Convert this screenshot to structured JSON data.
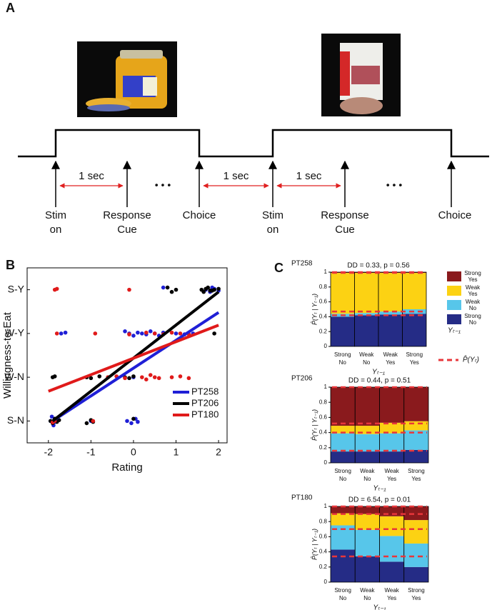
{
  "panel_labels": [
    "A",
    "B",
    "C"
  ],
  "diagram": {
    "events": [
      "Stim on",
      "Response Cue",
      "Choice",
      "Stim on",
      "Response Cue",
      "Choice"
    ],
    "intervals": [
      "1 sec",
      "1 sec",
      "1 sec"
    ],
    "ellipsis": [
      "• • •",
      "• • •"
    ]
  },
  "chart_data": [
    {
      "type": "scatter",
      "xlabel": "Rating",
      "ylabel": "Willingness-to-Eat",
      "xlim": [
        -2.5,
        2.2
      ],
      "xticks": [
        -2,
        -1,
        0,
        1,
        2
      ],
      "ylim": [
        0.5,
        4.5
      ],
      "yticks": [
        {
          "value": 1,
          "label": "S-N"
        },
        {
          "value": 2,
          "label": "W-N"
        },
        {
          "value": 3,
          "label": "W-Y"
        },
        {
          "value": 4,
          "label": "S-Y"
        }
      ],
      "series": [
        {
          "name": "PT258",
          "color": "#1f1fd6",
          "x": [
            -1.95,
            -1.9,
            -1.85,
            -1.8,
            -1.92,
            -1.88,
            -1.83,
            -1.7,
            -1.6,
            -1.0,
            -0.15,
            -0.05,
            0.05,
            0.1,
            -0.1,
            -0.2,
            0,
            0.1,
            0.2,
            0.3,
            0.4,
            0.5,
            0.6,
            0.7,
            1.0,
            1.2,
            1.4,
            0.7,
            1.7,
            1.8,
            1.9,
            2.0,
            1.85,
            0.0
          ],
          "y": [
            1.0,
            0.95,
            1.05,
            1.0,
            1.1,
            0.9,
            0.98,
            3.0,
            3.02,
            1.0,
            1.0,
            0.95,
            1.05,
            0.98,
            3.0,
            3.05,
            2.95,
            3.02,
            3.0,
            2.98,
            3.05,
            3.0,
            2.95,
            3.02,
            3.0,
            2.98,
            3.0,
            4.05,
            4.0,
            3.95,
            4.02,
            3.98,
            4.05,
            2.0
          ],
          "fit_x": [
            -1.9,
            2.0
          ],
          "fit_y": [
            1.0,
            3.48
          ]
        },
        {
          "name": "PT206",
          "color": "#000000",
          "x": [
            -1.95,
            -1.9,
            -1.85,
            -1.8,
            -1.75,
            -1.1,
            -1.0,
            -0.95,
            -1.9,
            -1.85,
            -1.1,
            -1.0,
            -0.8,
            -0.6,
            -0.2,
            -0.1,
            0.0,
            0.8,
            0.9,
            1.0,
            1.6,
            1.7,
            1.8,
            1.9,
            2.0,
            1.65,
            1.75,
            1.85,
            1.9,
            0.0
          ],
          "y": [
            1.0,
            0.95,
            1.05,
            0.98,
            1.02,
            0.95,
            1.02,
            0.98,
            2.0,
            2.02,
            2.0,
            1.98,
            2.02,
            2.0,
            2.0,
            1.98,
            2.02,
            4.05,
            3.95,
            4.0,
            4.0,
            4.02,
            3.98,
            4.0,
            4.02,
            3.95,
            4.05,
            3.98,
            3.0,
            1.05
          ],
          "fit_x": [
            -1.9,
            2.0
          ],
          "fit_y": [
            1.0,
            3.95
          ]
        },
        {
          "name": "PT180",
          "color": "#e01a1a",
          "x": [
            -1.85,
            -1.8,
            -0.1,
            -1.8,
            -0.9,
            -0.1,
            0.3,
            0.5,
            0.7,
            0.9,
            1.1,
            1.3,
            -0.6,
            -0.4,
            -0.2,
            0.2,
            0.3,
            0.4,
            0.5,
            0.6,
            0.9,
            1.1,
            1.3,
            -1.85,
            -0.95,
            -1.9
          ],
          "y": [
            4.0,
            4.02,
            4.0,
            3.0,
            3.0,
            2.98,
            3.02,
            3.0,
            2.98,
            3.02,
            3.0,
            2.98,
            2.0,
            2.02,
            1.98,
            2.0,
            1.95,
            2.05,
            2.0,
            1.98,
            2.0,
            2.02,
            1.98,
            1.0,
            1.0,
            0.97
          ],
          "fit_x": [
            -2.0,
            2.0
          ],
          "fit_y": [
            1.68,
            3.19
          ]
        }
      ]
    },
    {
      "type": "stacked_bar",
      "panel": "PT258",
      "title": "DD = 0.33, p = 0.56",
      "ylabel": "P̂(Yₜ | Yₜ₋₁)",
      "xlabel": "Yₜ₋₁",
      "legend_title": "Yₜ₋₁",
      "marginal_label": "P̂(Yₜ)",
      "categories": [
        "Strong No",
        "Weak No",
        "Weak Yes",
        "Strong Yes"
      ],
      "ylim": [
        0,
        1
      ],
      "yticks": [
        0,
        0.2,
        0.4,
        0.6,
        0.8,
        1
      ],
      "series": [
        {
          "name": "Strong No",
          "color": "#252c86",
          "values": [
            0.4,
            0.42,
            0.43,
            0.44
          ]
        },
        {
          "name": "Weak No",
          "color": "#57c6ea",
          "values": [
            0.04,
            0.03,
            0.04,
            0.06
          ]
        },
        {
          "name": "Weak Yes",
          "color": "#fcd213",
          "values": [
            0.55,
            0.54,
            0.52,
            0.49
          ]
        },
        {
          "name": "Strong Yes",
          "color": "#8a1a1d",
          "values": [
            0.01,
            0.01,
            0.01,
            0.01
          ]
        }
      ],
      "marginal": [
        0.42,
        0.05,
        0.52,
        0.01
      ],
      "marginal_color": "#e8363a"
    },
    {
      "type": "stacked_bar",
      "panel": "PT206",
      "title": "DD = 0.44, p = 0.51",
      "ylabel": "P̂(Yₜ | Yₜ₋₁)",
      "xlabel": "Yₜ₋₁",
      "categories": [
        "Strong No",
        "Weak No",
        "Weak Yes",
        "Strong Yes"
      ],
      "ylim": [
        0,
        1
      ],
      "yticks": [
        0,
        0.2,
        0.4,
        0.6,
        0.8,
        1
      ],
      "series": [
        {
          "name": "Strong No",
          "color": "#252c86",
          "values": [
            0.15,
            0.15,
            0.15,
            0.17
          ]
        },
        {
          "name": "Weak No",
          "color": "#57c6ea",
          "values": [
            0.24,
            0.23,
            0.24,
            0.26
          ]
        },
        {
          "name": "Weak Yes",
          "color": "#fcd213",
          "values": [
            0.1,
            0.11,
            0.14,
            0.12
          ]
        },
        {
          "name": "Strong Yes",
          "color": "#8a1a1d",
          "values": [
            0.51,
            0.51,
            0.47,
            0.45
          ]
        }
      ],
      "marginal": [
        0.16,
        0.24,
        0.12,
        0.48
      ],
      "marginal_color": "#e8363a"
    },
    {
      "type": "stacked_bar",
      "panel": "PT180",
      "title": "DD = 6.54, p = 0.01",
      "ylabel": "P̂(Yₜ | Yₜ₋₁)",
      "xlabel": "Yₜ₋₁",
      "categories": [
        "Strong No",
        "Weak No",
        "Weak Yes",
        "Strong Yes"
      ],
      "ylim": [
        0,
        1
      ],
      "yticks": [
        0,
        0.2,
        0.4,
        0.6,
        0.8,
        1
      ],
      "series": [
        {
          "name": "Strong No",
          "color": "#252c86",
          "values": [
            0.43,
            0.34,
            0.27,
            0.2
          ]
        },
        {
          "name": "Weak No",
          "color": "#57c6ea",
          "values": [
            0.32,
            0.35,
            0.34,
            0.31
          ]
        },
        {
          "name": "Weak Yes",
          "color": "#fcd213",
          "values": [
            0.16,
            0.21,
            0.26,
            0.31
          ]
        },
        {
          "name": "Strong Yes",
          "color": "#8a1a1d",
          "values": [
            0.09,
            0.1,
            0.13,
            0.18
          ]
        }
      ],
      "marginal": [
        0.34,
        0.36,
        0.2,
        0.1
      ],
      "marginal_color": "#e8363a"
    }
  ]
}
